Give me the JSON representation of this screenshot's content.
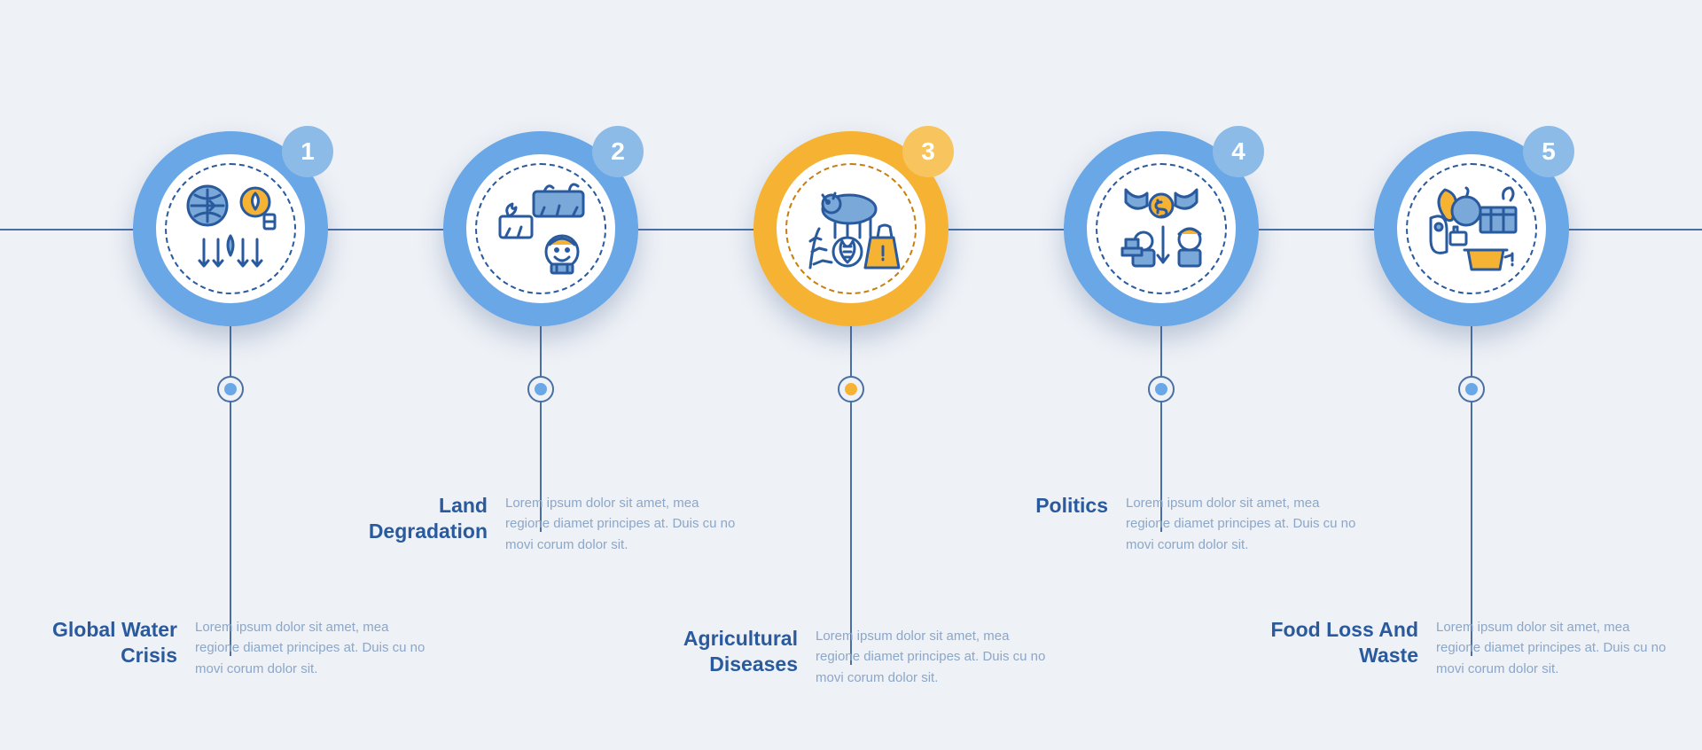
{
  "infographic": {
    "type": "infographic",
    "background_color": "#eef1f6",
    "connector_color": "#4a6fa5",
    "title_color": "#2a5a9e",
    "desc_color": "#8ba7c9",
    "ring_outer_diameter": 220,
    "ring_inner_diameter": 168,
    "badge_diameter": 58,
    "dot_ring_diameter": 30,
    "dot_core_diameter": 14,
    "title_fontsize": 23,
    "desc_fontsize": 15,
    "badge_fontsize": 28,
    "steps": [
      {
        "num": "1",
        "title": "Global Water Crisis",
        "desc": "Lorem ipsum dolor sit amet, mea regione diamet principes at. Duis cu no movi corum dolor sit.",
        "ring_color": "#6aa7e6",
        "badge_color": "#8cbbe8",
        "dashed_color": "#2a5a9e",
        "dot_color": "#6aa7e6",
        "stem1": 58,
        "stem2": 288,
        "icon": "water"
      },
      {
        "num": "2",
        "title": "Land Degradation",
        "desc": "Lorem ipsum dolor sit amet, mea regione diamet principes at. Duis cu no movi corum dolor sit.",
        "ring_color": "#6aa7e6",
        "badge_color": "#8cbbe8",
        "dashed_color": "#2a5a9e",
        "dot_color": "#6aa7e6",
        "stem1": 58,
        "stem2": 148,
        "icon": "land"
      },
      {
        "num": "3",
        "title": "Agricultural Diseases",
        "desc": "Lorem ipsum dolor sit amet, mea regione diamet principes at. Duis cu no movi corum dolor sit.",
        "ring_color": "#f6b233",
        "badge_color": "#f7c45e",
        "dashed_color": "#c77f10",
        "dot_color": "#f6b233",
        "stem1": 58,
        "stem2": 298,
        "icon": "disease"
      },
      {
        "num": "4",
        "title": "Politics",
        "desc": "Lorem ipsum dolor sit amet, mea regione diamet principes at. Duis cu no movi corum dolor sit.",
        "ring_color": "#6aa7e6",
        "badge_color": "#8cbbe8",
        "dashed_color": "#2a5a9e",
        "dot_color": "#6aa7e6",
        "stem1": 58,
        "stem2": 148,
        "icon": "politics"
      },
      {
        "num": "5",
        "title": "Food Loss And Waste",
        "desc": "Lorem ipsum dolor sit amet, mea regione diamet principes at. Duis cu no movi corum dolor sit.",
        "ring_color": "#6aa7e6",
        "badge_color": "#8cbbe8",
        "dashed_color": "#2a5a9e",
        "dot_color": "#6aa7e6",
        "stem1": 58,
        "stem2": 288,
        "icon": "waste"
      }
    ],
    "icon_stroke": "#2a5a9e",
    "icon_fill_blue": "#7aa8d8",
    "icon_fill_yellow": "#f6b233"
  }
}
